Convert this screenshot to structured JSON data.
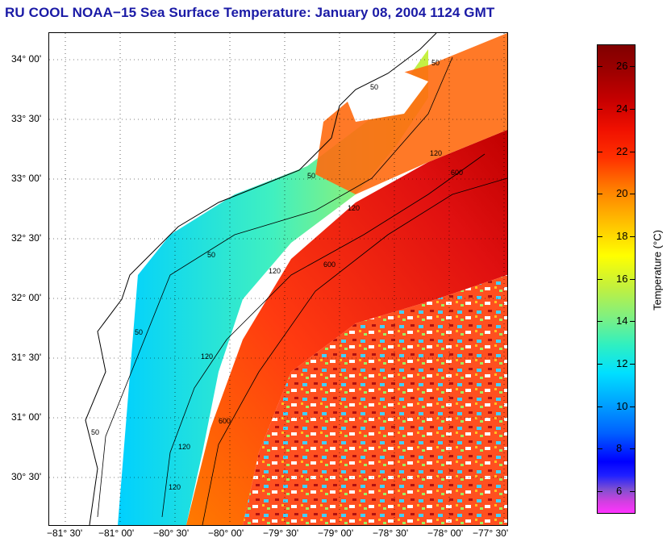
{
  "title": "RU COOL  NOAA−15  Sea Surface Temperature:  January 08, 2004 1124 GMT",
  "latitude_labels": [
    "34° 00'",
    "33° 30'",
    "33° 00'",
    "32° 30'",
    "32° 00'",
    "31° 30'",
    "31° 00'",
    "30° 30'"
  ],
  "longitude_labels": [
    "−81° 30'",
    "−81° 00'",
    "−80° 30'",
    "−80° 00'",
    "−79° 30'",
    "−79° 00'",
    "−78° 30'",
    "−78° 00'",
    "−77° 30'"
  ],
  "contour_labels": [
    "50",
    "50",
    "50",
    "50",
    "50",
    "50",
    "120",
    "120",
    "120",
    "120",
    "120",
    "120",
    "600",
    "600",
    "600"
  ],
  "colorbar": {
    "title": "Temperature (°C)",
    "ticks": [
      "26",
      "24",
      "22",
      "20",
      "18",
      "16",
      "14",
      "12",
      "10",
      "8",
      "6"
    ],
    "min": 5,
    "max": 27
  },
  "colors": {
    "title": "#1a1aa6",
    "land": "#ffffff",
    "warm_water": "#ff3a10",
    "cool_water": "#00d8ff"
  }
}
